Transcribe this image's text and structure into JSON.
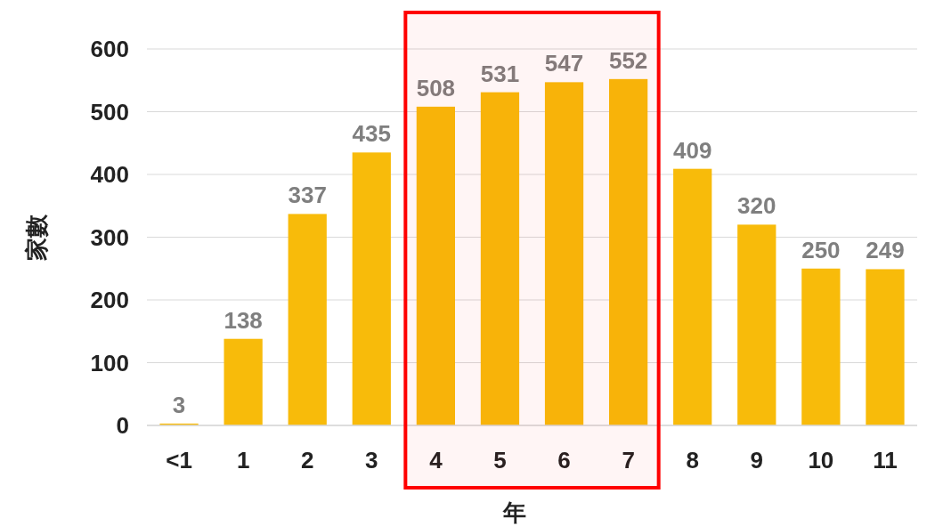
{
  "chart_data": {
    "type": "bar",
    "xlabel": "年",
    "ylabel": "家數",
    "categories": [
      "<1",
      "1",
      "2",
      "3",
      "4",
      "5",
      "6",
      "7",
      "8",
      "9",
      "10",
      "11"
    ],
    "values": [
      3,
      138,
      337,
      435,
      508,
      531,
      547,
      552,
      409,
      320,
      250,
      249
    ],
    "color": "#f8bb0a",
    "ylim": [
      0,
      600
    ],
    "yticks": [
      0,
      100,
      200,
      300,
      400,
      500,
      600
    ],
    "grid": "y",
    "data_labels": true,
    "bands": [
      {
        "axis": "x",
        "from": "4",
        "to": "7",
        "color": "#ff0000"
      }
    ]
  }
}
